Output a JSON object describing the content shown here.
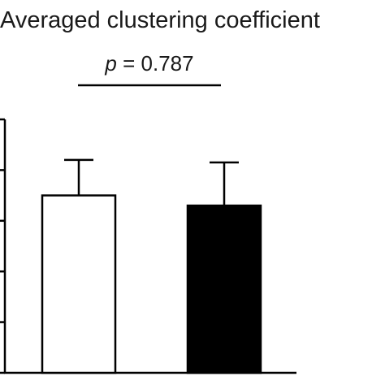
{
  "chart_data": {
    "type": "bar",
    "title": "Averaged clustering coefficient",
    "xlabel": "",
    "ylabel": "",
    "ylim": [
      0,
      5
    ],
    "grid": false,
    "categories": [
      "",
      ""
    ],
    "values": [
      3.5,
      3.3
    ],
    "errors": [
      0.7,
      0.85
    ],
    "fills": [
      "#ffffff",
      "#000000"
    ],
    "annotation": {
      "p_symbol": "p",
      "p_rest": " = 0.787"
    }
  }
}
